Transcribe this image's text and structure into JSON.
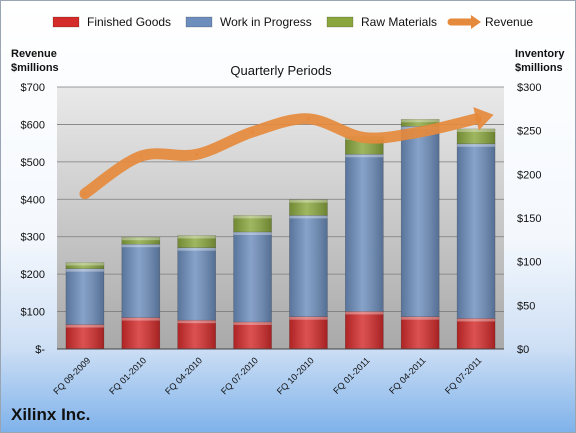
{
  "company": "Xilinx Inc.",
  "chart_data": {
    "type": "bar",
    "stacked": true,
    "title": "Quarterly Periods",
    "ylabel_left": [
      "Revenue",
      "$millions"
    ],
    "ylabel_right": [
      "Inventory",
      "$millions"
    ],
    "categories": [
      "FQ 09-2009",
      "FQ 01-2010",
      "FQ 04-2010",
      "FQ 07-2010",
      "FQ 10-2010",
      "FQ 01-2011",
      "FQ 04-2011",
      "FQ 07-2011"
    ],
    "series": [
      {
        "name": "Finished Goods",
        "axis": "right",
        "color": "#d42b2b",
        "values": [
          28,
          36,
          33,
          31,
          37,
          43,
          37,
          35
        ]
      },
      {
        "name": "Work in Progress",
        "axis": "right",
        "color": "#6d8ebd",
        "values": [
          64,
          84,
          83,
          103,
          116,
          180,
          218,
          200
        ]
      },
      {
        "name": "Raw Materials",
        "axis": "right",
        "color": "#8aa73e",
        "values": [
          7,
          8,
          14,
          19,
          18,
          20,
          8,
          17
        ]
      },
      {
        "name": "Revenue",
        "axis": "left",
        "type": "line",
        "color": "#e58a3c",
        "values": [
          415,
          515,
          520,
          580,
          615,
          565,
          580,
          615
        ]
      }
    ],
    "ylim_left": [
      0,
      700
    ],
    "ylim_right": [
      0,
      300
    ],
    "left_ticks": [
      "$-",
      "$100",
      "$200",
      "$300",
      "$400",
      "$500",
      "$600",
      "$700"
    ],
    "right_ticks": [
      "$0",
      "$50",
      "$100",
      "$150",
      "$200",
      "$250",
      "$300"
    ],
    "grid": true,
    "legend_position": "top"
  }
}
